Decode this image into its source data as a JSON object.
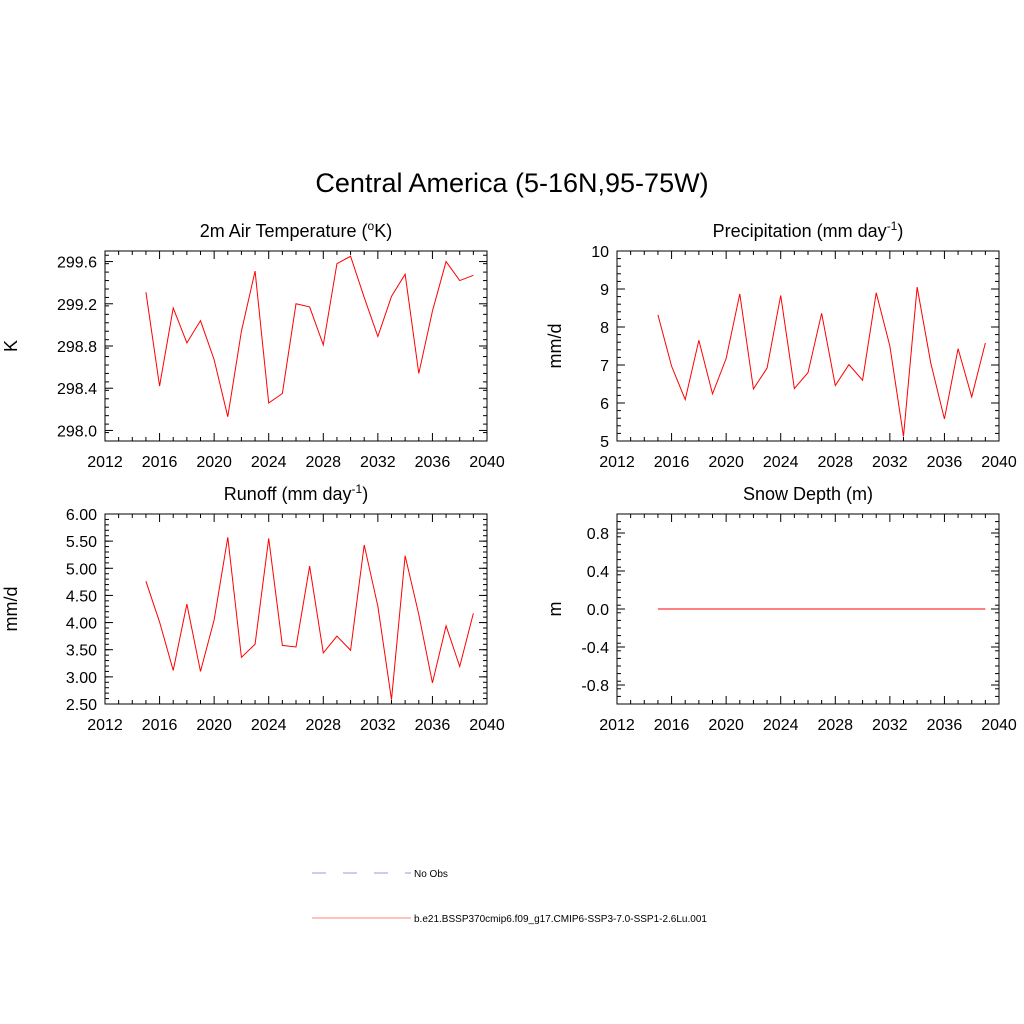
{
  "figure": {
    "title": "Central America (5-16N,95-75W)"
  },
  "legend": [
    {
      "label": "No Obs",
      "color": "#9999dd",
      "dash": true
    },
    {
      "label": "b.e21.BSSP370cmip6.f09_g17.CMIP6-SSP3-7.0-SSP1-2.6Lu.001",
      "color": "#ff8080",
      "dash": false
    }
  ],
  "chart_data": [
    {
      "type": "line",
      "title": "2m Air Temperature (",
      "title_sup": "o",
      "title_after": "K)",
      "ylabel": "K",
      "xlim": [
        2012,
        2040
      ],
      "ylim": [
        297.9,
        299.7
      ],
      "xticks": [
        "2012",
        "2016",
        "2020",
        "2024",
        "2028",
        "2032",
        "2036",
        "2040"
      ],
      "yticks": [
        "298.0",
        "298.4",
        "298.8",
        "299.2",
        "299.6"
      ],
      "series": [
        {
          "color": "#ff0000",
          "x": [
            2015,
            2016,
            2017,
            2018,
            2019,
            2020,
            2021,
            2022,
            2023,
            2024,
            2025,
            2026,
            2027,
            2028,
            2029,
            2030,
            2031,
            2032,
            2033,
            2034,
            2035,
            2036,
            2037,
            2038,
            2039
          ],
          "y": [
            299.31,
            298.42,
            299.16,
            298.83,
            299.04,
            298.67,
            298.13,
            298.94,
            299.51,
            298.26,
            298.35,
            299.2,
            299.17,
            298.81,
            299.58,
            299.65,
            299.26,
            298.89,
            299.27,
            299.48,
            298.54,
            299.13,
            299.6,
            299.42,
            299.47
          ]
        }
      ]
    },
    {
      "type": "line",
      "title": "Precipitation (mm day",
      "title_sup": "-1",
      "title_after": ")",
      "ylabel": "mm/d",
      "xlim": [
        2012,
        2040
      ],
      "ylim": [
        5,
        10
      ],
      "xticks": [
        "2012",
        "2016",
        "2020",
        "2024",
        "2028",
        "2032",
        "2036",
        "2040"
      ],
      "yticks": [
        "5",
        "6",
        "7",
        "8",
        "9",
        "10"
      ],
      "series": [
        {
          "color": "#ff0000",
          "x": [
            2015,
            2016,
            2017,
            2018,
            2019,
            2020,
            2021,
            2022,
            2023,
            2024,
            2025,
            2026,
            2027,
            2028,
            2029,
            2030,
            2031,
            2032,
            2033,
            2034,
            2035,
            2036,
            2037,
            2038,
            2039
          ],
          "y": [
            8.32,
            6.97,
            6.09,
            7.65,
            6.24,
            7.17,
            8.87,
            6.37,
            6.92,
            8.83,
            6.38,
            6.8,
            8.36,
            6.46,
            7.01,
            6.6,
            8.9,
            7.5,
            5.12,
            9.05,
            7.05,
            5.58,
            7.43,
            6.16,
            7.58
          ]
        }
      ]
    },
    {
      "type": "line",
      "title": "Runoff (mm day",
      "title_sup": "-1",
      "title_after": ")",
      "ylabel": "mm/d",
      "xlim": [
        2012,
        2040
      ],
      "ylim": [
        2.5,
        6.0
      ],
      "xticks": [
        "2012",
        "2016",
        "2020",
        "2024",
        "2028",
        "2032",
        "2036",
        "2040"
      ],
      "yticks": [
        "2.50",
        "3.00",
        "3.50",
        "4.00",
        "4.50",
        "5.00",
        "5.50",
        "6.00"
      ],
      "series": [
        {
          "color": "#ff0000",
          "x": [
            2015,
            2016,
            2017,
            2018,
            2019,
            2020,
            2021,
            2022,
            2023,
            2024,
            2025,
            2026,
            2027,
            2028,
            2029,
            2030,
            2031,
            2032,
            2033,
            2034,
            2035,
            2036,
            2037,
            2038,
            2039
          ],
          "y": [
            4.76,
            4.01,
            3.12,
            4.34,
            3.1,
            4.05,
            5.57,
            3.36,
            3.6,
            5.55,
            3.58,
            3.55,
            5.04,
            3.44,
            3.75,
            3.49,
            5.43,
            4.3,
            2.58,
            5.23,
            4.15,
            2.89,
            3.94,
            3.19,
            4.17
          ]
        }
      ]
    },
    {
      "type": "line",
      "title": "Snow Depth (m)",
      "title_sup": "",
      "title_after": "",
      "ylabel": "m",
      "xlim": [
        2012,
        2040
      ],
      "ylim": [
        -1.0,
        1.0
      ],
      "xticks": [
        "2012",
        "2016",
        "2020",
        "2024",
        "2028",
        "2032",
        "2036",
        "2040"
      ],
      "yticks": [
        "-0.8",
        "-0.4",
        "0.0",
        "0.4",
        "0.8"
      ],
      "series": [
        {
          "color": "#ff0000",
          "x": [
            2015,
            2016,
            2017,
            2018,
            2019,
            2020,
            2021,
            2022,
            2023,
            2024,
            2025,
            2026,
            2027,
            2028,
            2029,
            2030,
            2031,
            2032,
            2033,
            2034,
            2035,
            2036,
            2037,
            2038,
            2039
          ],
          "y": [
            0,
            0,
            0,
            0,
            0,
            0,
            0,
            0,
            0,
            0,
            0,
            0,
            0,
            0,
            0,
            0,
            0,
            0,
            0,
            0,
            0,
            0,
            0,
            0,
            0
          ]
        }
      ]
    }
  ]
}
